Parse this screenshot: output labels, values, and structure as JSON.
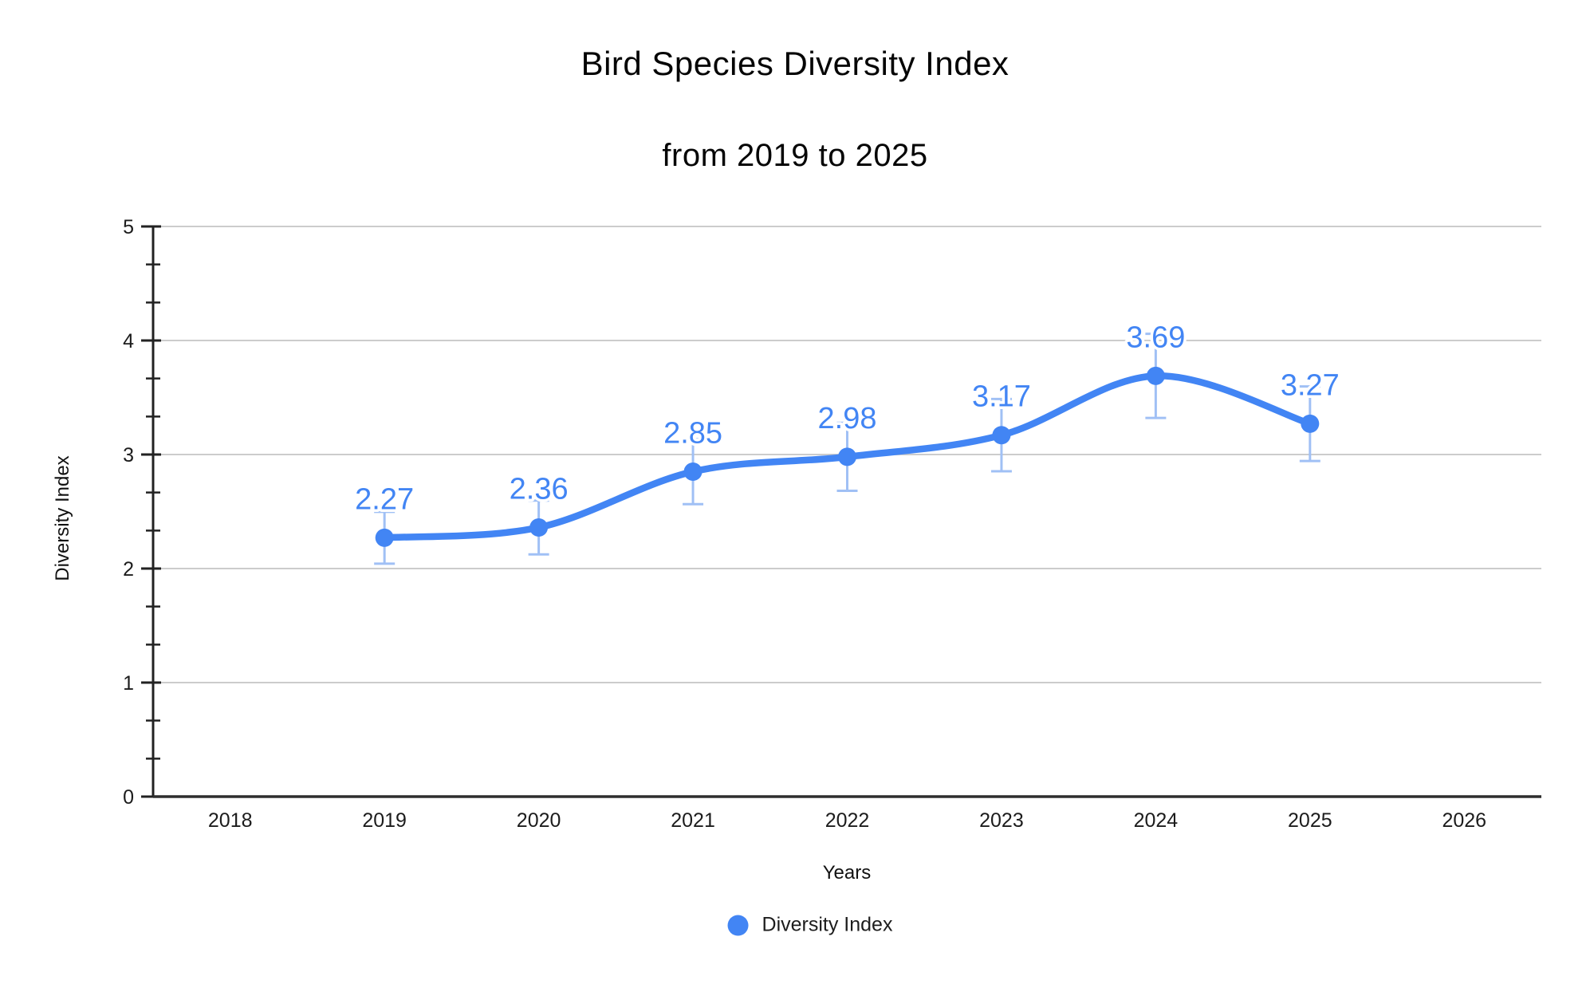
{
  "chart": {
    "title": "Bird Species Diversity Index",
    "subtitle": "from 2019 to 2025",
    "x_axis_title": "Years",
    "y_axis_title": "Diversity Index",
    "legend": [
      {
        "label": "Diversity Index",
        "color": "#4285f4"
      }
    ]
  },
  "chart_data": {
    "type": "line",
    "smooth": true,
    "title": "Bird Species Diversity Index",
    "subtitle": "from 2019 to 2025",
    "xlabel": "Years",
    "ylabel": "Diversity Index",
    "x": [
      2019,
      2020,
      2021,
      2022,
      2023,
      2024,
      2025
    ],
    "series": [
      {
        "name": "Diversity Index",
        "values": [
          2.27,
          2.36,
          2.85,
          2.98,
          3.17,
          3.69,
          3.27
        ],
        "point_labels": [
          "2.27",
          "2.36",
          "2.85",
          "2.98",
          "3.17",
          "3.69",
          "3.27"
        ]
      }
    ],
    "error_bars": {
      "type": "percent",
      "value": 10
    },
    "xlim": [
      2017.5,
      2026.5
    ],
    "ylim": [
      0,
      5
    ],
    "x_tick_labels": [
      "2018",
      "2019",
      "2020",
      "2021",
      "2022",
      "2023",
      "2024",
      "2025",
      "2026"
    ],
    "x_tick_values": [
      2018,
      2019,
      2020,
      2021,
      2022,
      2023,
      2024,
      2025,
      2026
    ],
    "y_tick_values": [
      0,
      1,
      2,
      3,
      4,
      5
    ],
    "y_minor_ticks_between_majors": 2,
    "grid": "horizontal",
    "legend_position": "bottom",
    "colors": {
      "series": "#4285f4",
      "error_bar": "#a0c0f5",
      "gridline": "#cccccc",
      "axis_line": "#2e2e2e",
      "tick": "#222222",
      "tick_label": "#1c1c1c",
      "annotation": "#4285f4",
      "annotation_halo": "#ffffff"
    }
  }
}
